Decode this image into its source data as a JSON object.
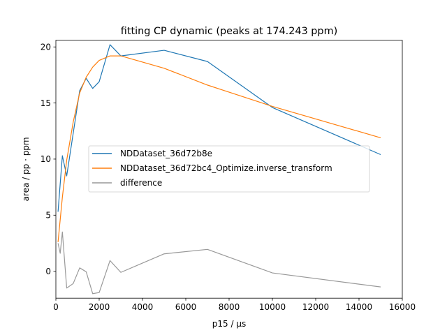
{
  "chart_data": {
    "type": "line",
    "title": "fitting CP dynamic (peaks at 174.243 ppm)",
    "xlabel": "p15 / µs",
    "ylabel": "area / pp · ppm",
    "xlim": [
      0,
      16000
    ],
    "ylim": [
      -2.4,
      20.6
    ],
    "xticks": [
      0,
      2000,
      4000,
      6000,
      8000,
      10000,
      12000,
      14000,
      16000
    ],
    "yticks": [
      0,
      5,
      10,
      15,
      20
    ],
    "grid": false,
    "legend_position": "center-left",
    "series": [
      {
        "name": "NDDataset_36d72b8e",
        "color": "#1f77b4",
        "x": [
          100,
          300,
          500,
          1100,
          1400,
          1700,
          2000,
          2500,
          3000,
          5000,
          7000,
          10000,
          15000
        ],
        "y": [
          5.3,
          10.3,
          8.5,
          16.1,
          17.2,
          16.3,
          16.9,
          20.2,
          19.2,
          19.7,
          18.7,
          14.6,
          10.4
        ]
      },
      {
        "name": "NDDataset_36d72bc4_Optimize.inverse_transform",
        "color": "#ff7f0e",
        "x": [
          100,
          300,
          500,
          800,
          1100,
          1400,
          1700,
          2000,
          2500,
          3000,
          5000,
          7000,
          10000,
          15000
        ],
        "y": [
          2.6,
          6.6,
          9.9,
          13.3,
          15.9,
          17.3,
          18.2,
          18.8,
          19.2,
          19.2,
          18.1,
          16.6,
          14.7,
          11.9
        ]
      },
      {
        "name": "difference",
        "color": "#999999",
        "x": [
          100,
          200,
          300,
          500,
          800,
          1100,
          1400,
          1700,
          2000,
          2500,
          3000,
          5000,
          7000,
          10000,
          15000
        ],
        "y": [
          2.5,
          1.6,
          3.5,
          -1.5,
          -1.1,
          0.3,
          -0.05,
          -2.0,
          -1.9,
          0.95,
          -0.1,
          1.55,
          1.95,
          -0.15,
          -1.4
        ]
      }
    ]
  }
}
